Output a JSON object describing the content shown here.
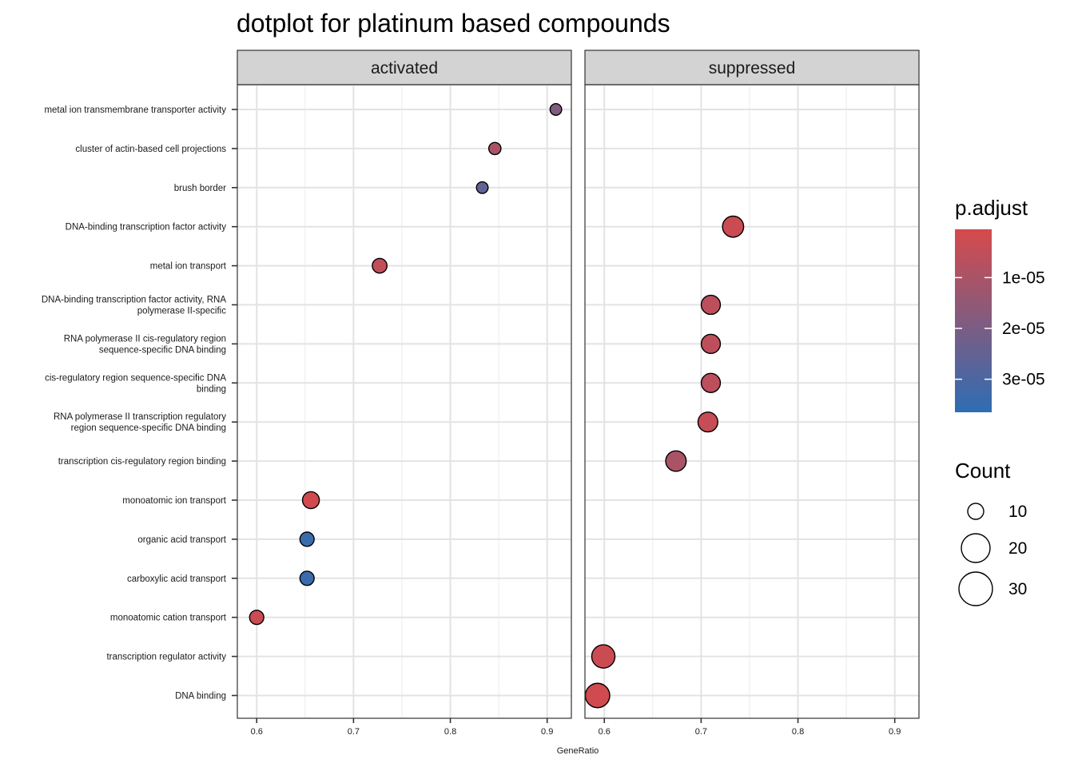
{
  "chart_data": {
    "type": "scatter",
    "title": "dotplot for platinum based compounds",
    "xlabel": "GeneRatio",
    "categories": [
      "metal ion transmembrane transporter activity",
      "cluster of actin-based cell projections",
      "brush border",
      "DNA-binding transcription factor activity",
      "metal ion transport",
      "DNA-binding transcription factor activity, RNA\npolymerase II-specific",
      "RNA polymerase II cis-regulatory region\nsequence-specific DNA binding",
      "cis-regulatory region sequence-specific DNA\nbinding",
      "RNA polymerase II transcription regulatory\nregion sequence-specific DNA binding",
      "transcription cis-regulatory region binding",
      "monoatomic ion transport",
      "organic acid transport",
      "carboxylic acid transport",
      "monoatomic cation transport",
      "transcription regulator activity",
      "DNA binding"
    ],
    "xlim": [
      0.58,
      0.925
    ],
    "x_ticks": [
      0.6,
      0.7,
      0.8,
      0.9
    ],
    "x_tick_labels": [
      "0.6",
      "0.7",
      "0.8",
      "0.9"
    ],
    "grid": true,
    "panels": [
      {
        "label": "activated",
        "points": [
          {
            "category": 0,
            "x": 0.909,
            "count": 10,
            "p_adjust": 1.9e-05
          },
          {
            "category": 1,
            "x": 0.846,
            "count": 11,
            "p_adjust": 1e-05
          },
          {
            "category": 2,
            "x": 0.833,
            "count": 10,
            "p_adjust": 2.6e-05
          },
          {
            "category": 4,
            "x": 0.727,
            "count": 16,
            "p_adjust": 5e-06
          },
          {
            "category": 10,
            "x": 0.656,
            "count": 21,
            "p_adjust": 2e-06
          },
          {
            "category": 11,
            "x": 0.652,
            "count": 15,
            "p_adjust": 3.4e-05
          },
          {
            "category": 12,
            "x": 0.652,
            "count": 15,
            "p_adjust": 3.4e-05
          },
          {
            "category": 13,
            "x": 0.6,
            "count": 15,
            "p_adjust": 3e-06
          }
        ]
      },
      {
        "label": "suppressed",
        "points": [
          {
            "category": 3,
            "x": 0.733,
            "count": 33,
            "p_adjust": 3e-06
          },
          {
            "category": 5,
            "x": 0.71,
            "count": 27,
            "p_adjust": 6e-06
          },
          {
            "category": 6,
            "x": 0.71,
            "count": 27,
            "p_adjust": 6e-06
          },
          {
            "category": 7,
            "x": 0.71,
            "count": 27,
            "p_adjust": 6e-06
          },
          {
            "category": 8,
            "x": 0.707,
            "count": 29,
            "p_adjust": 4e-06
          },
          {
            "category": 9,
            "x": 0.674,
            "count": 31,
            "p_adjust": 1e-05
          },
          {
            "category": 14,
            "x": 0.599,
            "count": 40,
            "p_adjust": 3e-06
          },
          {
            "category": 15,
            "x": 0.593,
            "count": 44,
            "p_adjust": 2e-06
          }
        ]
      }
    ],
    "color_legend": {
      "title": "p.adjust",
      "low_color": "#d64a4b",
      "high_color": "#2e6db4",
      "range": [
        5e-07,
        3.65e-05
      ],
      "ticks": [
        1e-05,
        2e-05,
        3e-05
      ],
      "tick_labels": [
        "1e-05",
        "2e-05",
        "3e-05"
      ]
    },
    "size_legend": {
      "title": "Count",
      "values": [
        10,
        20,
        30
      ],
      "labels": [
        "10",
        "20",
        "30"
      ]
    },
    "legend_position": "right"
  }
}
